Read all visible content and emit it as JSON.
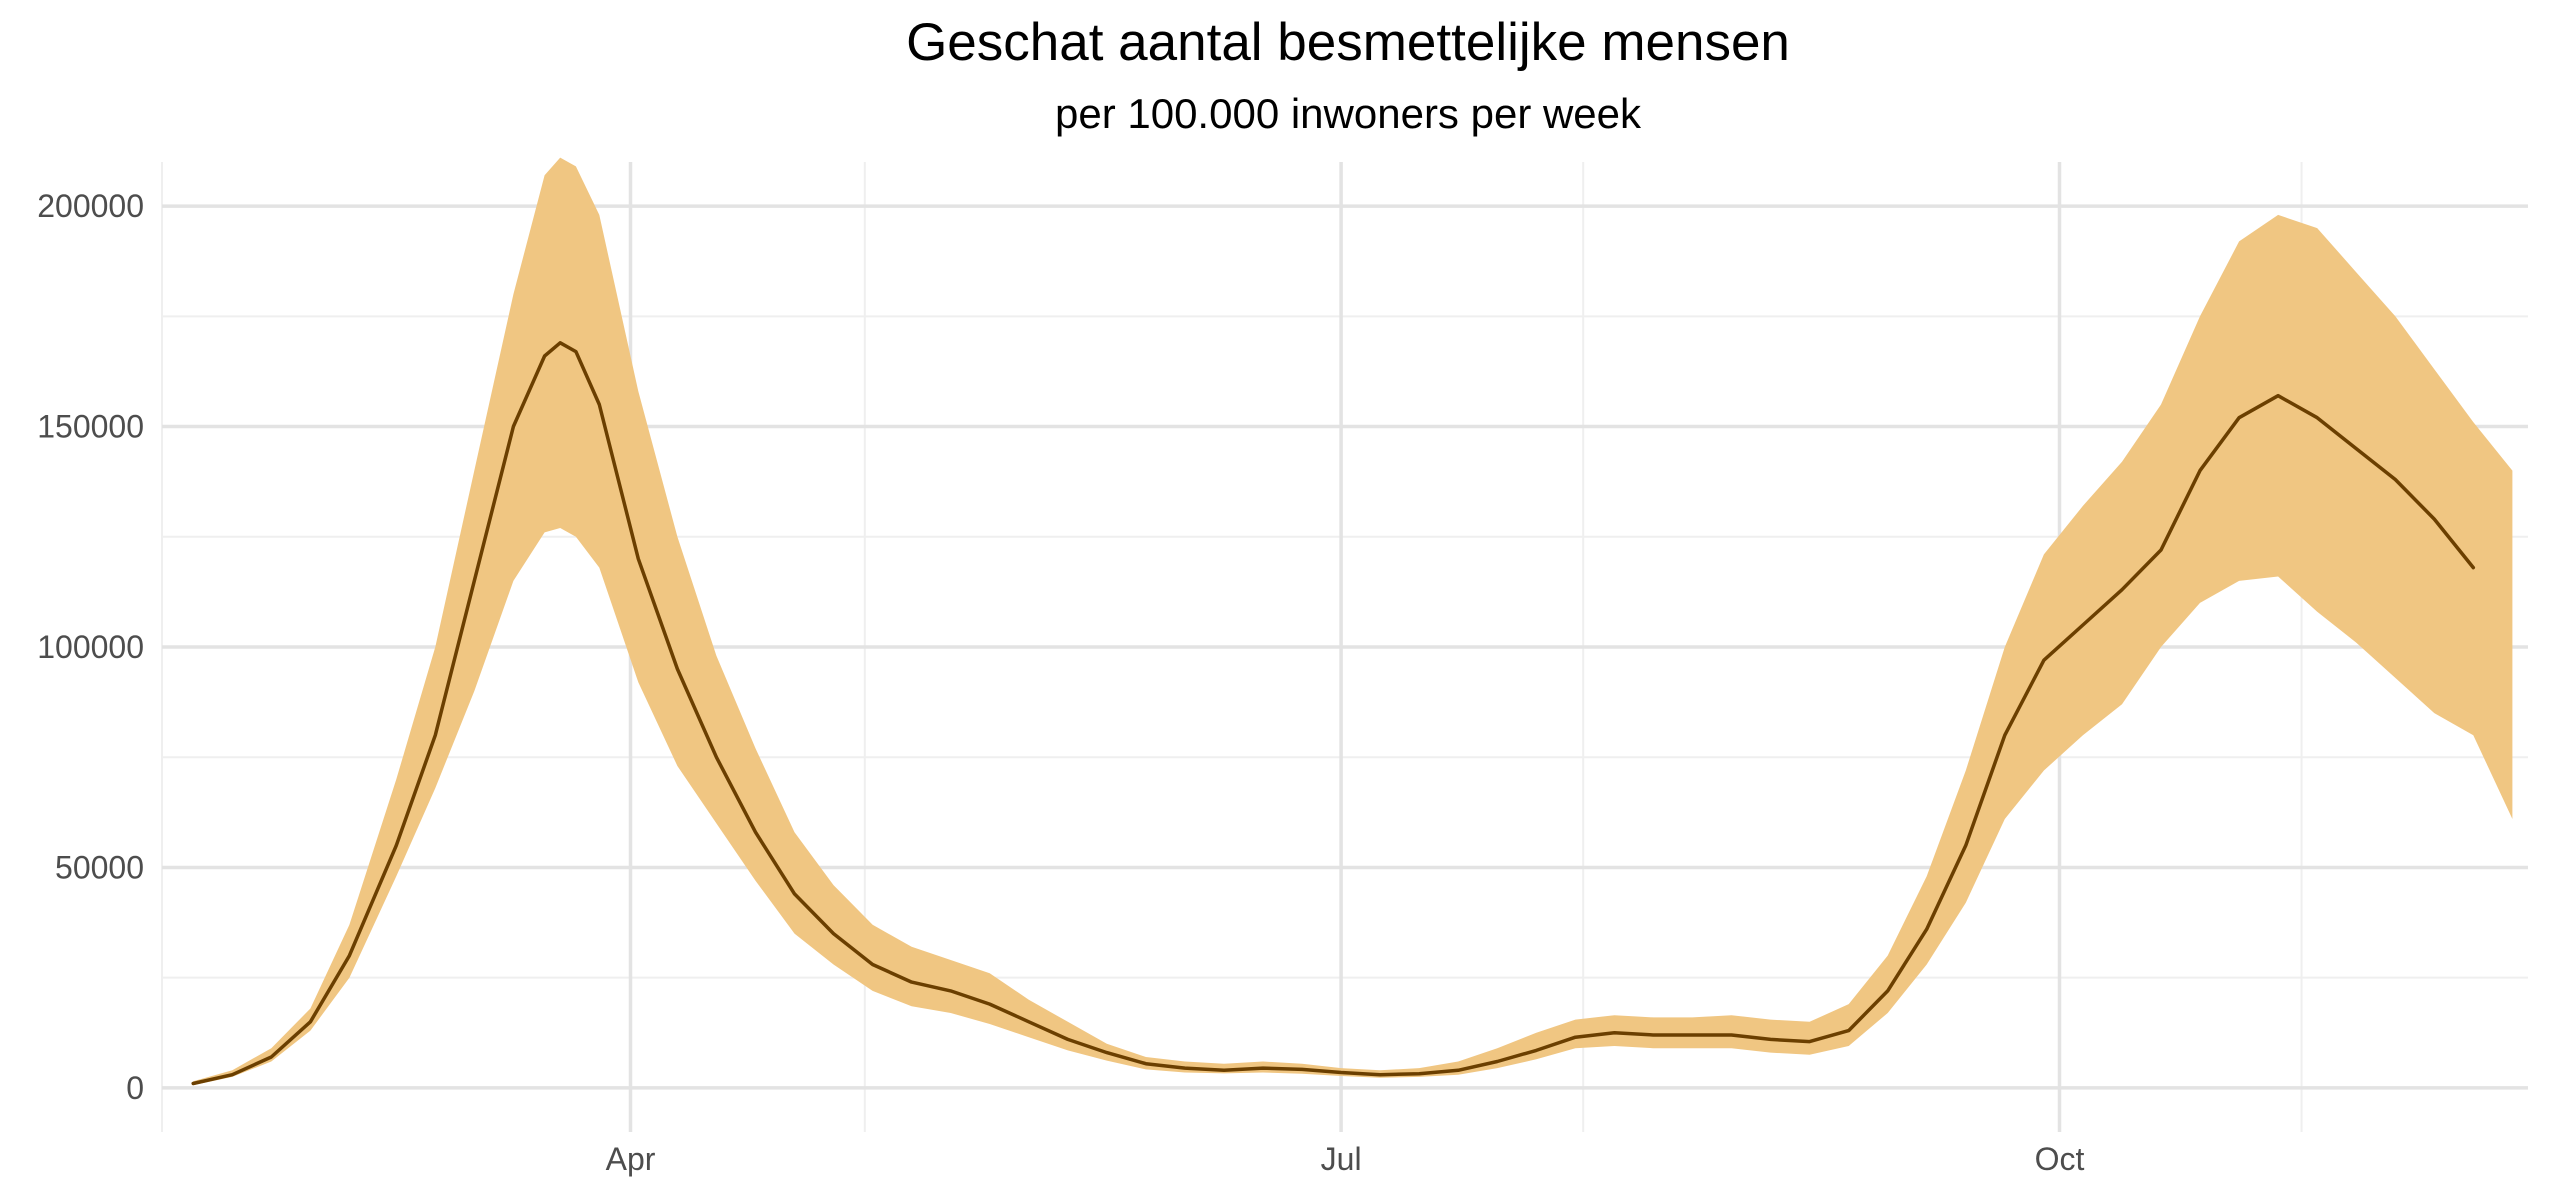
{
  "colors": {
    "line": "#6b3f00",
    "band": "#f0c682",
    "grid_major": "#e3e3e3",
    "grid_minor": "#efefef",
    "text": "#4d4d4d",
    "background": "#ffffff"
  },
  "chart_data": {
    "type": "area",
    "title": "Geschat aantal besmettelijke mensen",
    "subtitle": "per 100.000 inwoners per week",
    "xlabel": "",
    "ylabel": "",
    "grid": true,
    "legend": "none",
    "x_axis": {
      "type": "date",
      "range": [
        "2020-02-01",
        "2020-11-30"
      ],
      "ticks": [
        {
          "date": "2020-04-01",
          "label": "Apr"
        },
        {
          "date": "2020-07-01",
          "label": "Jul"
        },
        {
          "date": "2020-10-01",
          "label": "Oct"
        }
      ],
      "minor_ticks": [
        "2020-02-01",
        "2020-05-01",
        "2020-08-01",
        "2020-11-01"
      ]
    },
    "y_axis": {
      "range": [
        -10000,
        210000
      ],
      "ticks": [
        0,
        50000,
        100000,
        150000,
        200000
      ],
      "tick_labels": [
        "0",
        "50000",
        "100000",
        "150000",
        "200000"
      ],
      "minor_ticks": [
        25000,
        75000,
        125000,
        175000
      ]
    },
    "series": [
      {
        "kind": "line",
        "points": [
          [
            "2020-02-05",
            1000
          ],
          [
            "2020-02-10",
            3000
          ],
          [
            "2020-02-15",
            7000
          ],
          [
            "2020-02-20",
            15000
          ],
          [
            "2020-02-25",
            30000
          ],
          [
            "2020-03-02",
            55000
          ],
          [
            "2020-03-07",
            80000
          ],
          [
            "2020-03-12",
            115000
          ],
          [
            "2020-03-17",
            150000
          ],
          [
            "2020-03-21",
            166000
          ],
          [
            "2020-03-23",
            169000
          ],
          [
            "2020-03-25",
            167000
          ],
          [
            "2020-03-28",
            155000
          ],
          [
            "2020-04-02",
            120000
          ],
          [
            "2020-04-07",
            95000
          ],
          [
            "2020-04-12",
            75000
          ],
          [
            "2020-04-17",
            58000
          ],
          [
            "2020-04-22",
            44000
          ],
          [
            "2020-04-27",
            35000
          ],
          [
            "2020-05-02",
            28000
          ],
          [
            "2020-05-07",
            24000
          ],
          [
            "2020-05-12",
            22000
          ],
          [
            "2020-05-17",
            19000
          ],
          [
            "2020-05-22",
            15000
          ],
          [
            "2020-05-27",
            11000
          ],
          [
            "2020-06-01",
            8000
          ],
          [
            "2020-06-06",
            5500
          ],
          [
            "2020-06-11",
            4500
          ],
          [
            "2020-06-16",
            4000
          ],
          [
            "2020-06-21",
            4500
          ],
          [
            "2020-06-26",
            4200
          ],
          [
            "2020-07-01",
            3500
          ],
          [
            "2020-07-06",
            3000
          ],
          [
            "2020-07-11",
            3200
          ],
          [
            "2020-07-16",
            4000
          ],
          [
            "2020-07-21",
            6000
          ],
          [
            "2020-07-26",
            8500
          ],
          [
            "2020-07-31",
            11500
          ],
          [
            "2020-08-05",
            12500
          ],
          [
            "2020-08-10",
            12000
          ],
          [
            "2020-08-15",
            12000
          ],
          [
            "2020-08-20",
            12000
          ],
          [
            "2020-08-25",
            11000
          ],
          [
            "2020-08-30",
            10500
          ],
          [
            "2020-09-04",
            13000
          ],
          [
            "2020-09-09",
            22000
          ],
          [
            "2020-09-14",
            36000
          ],
          [
            "2020-09-19",
            55000
          ],
          [
            "2020-09-24",
            80000
          ],
          [
            "2020-09-29",
            97000
          ],
          [
            "2020-10-04",
            105000
          ],
          [
            "2020-10-09",
            113000
          ],
          [
            "2020-10-14",
            122000
          ],
          [
            "2020-10-19",
            140000
          ],
          [
            "2020-10-24",
            152000
          ],
          [
            "2020-10-29",
            157000
          ],
          [
            "2020-11-03",
            152000
          ],
          [
            "2020-11-08",
            145000
          ],
          [
            "2020-11-13",
            138000
          ],
          [
            "2020-11-18",
            129000
          ],
          [
            "2020-11-23",
            118000
          ]
        ]
      },
      {
        "kind": "band",
        "upper": [
          [
            "2020-02-05",
            1500
          ],
          [
            "2020-02-10",
            4000
          ],
          [
            "2020-02-15",
            9000
          ],
          [
            "2020-02-20",
            18000
          ],
          [
            "2020-02-25",
            37000
          ],
          [
            "2020-03-02",
            70000
          ],
          [
            "2020-03-07",
            100000
          ],
          [
            "2020-03-12",
            140000
          ],
          [
            "2020-03-17",
            180000
          ],
          [
            "2020-03-21",
            207000
          ],
          [
            "2020-03-23",
            211000
          ],
          [
            "2020-03-25",
            209000
          ],
          [
            "2020-03-28",
            198000
          ],
          [
            "2020-04-02",
            158000
          ],
          [
            "2020-04-07",
            125000
          ],
          [
            "2020-04-12",
            98000
          ],
          [
            "2020-04-17",
            77000
          ],
          [
            "2020-04-22",
            58000
          ],
          [
            "2020-04-27",
            46000
          ],
          [
            "2020-05-02",
            37000
          ],
          [
            "2020-05-07",
            32000
          ],
          [
            "2020-05-12",
            29000
          ],
          [
            "2020-05-17",
            26000
          ],
          [
            "2020-05-22",
            20000
          ],
          [
            "2020-05-27",
            15000
          ],
          [
            "2020-06-01",
            10000
          ],
          [
            "2020-06-06",
            7000
          ],
          [
            "2020-06-11",
            6000
          ],
          [
            "2020-06-16",
            5500
          ],
          [
            "2020-06-21",
            6000
          ],
          [
            "2020-06-26",
            5500
          ],
          [
            "2020-07-01",
            4500
          ],
          [
            "2020-07-06",
            4000
          ],
          [
            "2020-07-11",
            4500
          ],
          [
            "2020-07-16",
            6000
          ],
          [
            "2020-07-21",
            9000
          ],
          [
            "2020-07-26",
            12500
          ],
          [
            "2020-07-31",
            15500
          ],
          [
            "2020-08-05",
            16500
          ],
          [
            "2020-08-10",
            16000
          ],
          [
            "2020-08-15",
            16000
          ],
          [
            "2020-08-20",
            16500
          ],
          [
            "2020-08-25",
            15500
          ],
          [
            "2020-08-30",
            15000
          ],
          [
            "2020-09-04",
            19000
          ],
          [
            "2020-09-09",
            30000
          ],
          [
            "2020-09-14",
            48000
          ],
          [
            "2020-09-19",
            72000
          ],
          [
            "2020-09-24",
            100000
          ],
          [
            "2020-09-29",
            121000
          ],
          [
            "2020-10-04",
            132000
          ],
          [
            "2020-10-09",
            142000
          ],
          [
            "2020-10-14",
            155000
          ],
          [
            "2020-10-19",
            175000
          ],
          [
            "2020-10-24",
            192000
          ],
          [
            "2020-10-29",
            198000
          ],
          [
            "2020-11-03",
            195000
          ],
          [
            "2020-11-08",
            185000
          ],
          [
            "2020-11-13",
            175000
          ],
          [
            "2020-11-18",
            163000
          ],
          [
            "2020-11-23",
            151000
          ],
          [
            "2020-11-28",
            140000
          ]
        ],
        "lower": [
          [
            "2020-02-05",
            600
          ],
          [
            "2020-02-10",
            2500
          ],
          [
            "2020-02-15",
            6000
          ],
          [
            "2020-02-20",
            13000
          ],
          [
            "2020-02-25",
            25000
          ],
          [
            "2020-03-02",
            48000
          ],
          [
            "2020-03-07",
            68000
          ],
          [
            "2020-03-12",
            90000
          ],
          [
            "2020-03-17",
            115000
          ],
          [
            "2020-03-21",
            126000
          ],
          [
            "2020-03-23",
            127000
          ],
          [
            "2020-03-25",
            125000
          ],
          [
            "2020-03-28",
            118000
          ],
          [
            "2020-04-02",
            92000
          ],
          [
            "2020-04-07",
            73000
          ],
          [
            "2020-04-12",
            60000
          ],
          [
            "2020-04-17",
            47000
          ],
          [
            "2020-04-22",
            35000
          ],
          [
            "2020-04-27",
            28000
          ],
          [
            "2020-05-02",
            22000
          ],
          [
            "2020-05-07",
            18500
          ],
          [
            "2020-05-12",
            17000
          ],
          [
            "2020-05-17",
            14500
          ],
          [
            "2020-05-22",
            11500
          ],
          [
            "2020-05-27",
            8500
          ],
          [
            "2020-06-01",
            6200
          ],
          [
            "2020-06-06",
            4200
          ],
          [
            "2020-06-11",
            3500
          ],
          [
            "2020-06-16",
            3300
          ],
          [
            "2020-06-21",
            3500
          ],
          [
            "2020-06-26",
            3200
          ],
          [
            "2020-07-01",
            2700
          ],
          [
            "2020-07-06",
            2300
          ],
          [
            "2020-07-11",
            2500
          ],
          [
            "2020-07-16",
            3000
          ],
          [
            "2020-07-21",
            4500
          ],
          [
            "2020-07-26",
            6500
          ],
          [
            "2020-07-31",
            9000
          ],
          [
            "2020-08-05",
            9500
          ],
          [
            "2020-08-10",
            9000
          ],
          [
            "2020-08-15",
            9000
          ],
          [
            "2020-08-20",
            9000
          ],
          [
            "2020-08-25",
            8000
          ],
          [
            "2020-08-30",
            7500
          ],
          [
            "2020-09-04",
            9500
          ],
          [
            "2020-09-09",
            17000
          ],
          [
            "2020-09-14",
            28000
          ],
          [
            "2020-09-19",
            42000
          ],
          [
            "2020-09-24",
            61000
          ],
          [
            "2020-09-29",
            72000
          ],
          [
            "2020-10-04",
            80000
          ],
          [
            "2020-10-09",
            87000
          ],
          [
            "2020-10-14",
            100000
          ],
          [
            "2020-10-19",
            110000
          ],
          [
            "2020-10-24",
            115000
          ],
          [
            "2020-10-29",
            116000
          ],
          [
            "2020-11-03",
            108000
          ],
          [
            "2020-11-08",
            101000
          ],
          [
            "2020-11-13",
            93000
          ],
          [
            "2020-11-18",
            85000
          ],
          [
            "2020-11-23",
            80000
          ],
          [
            "2020-11-28",
            61000
          ]
        ]
      }
    ]
  }
}
